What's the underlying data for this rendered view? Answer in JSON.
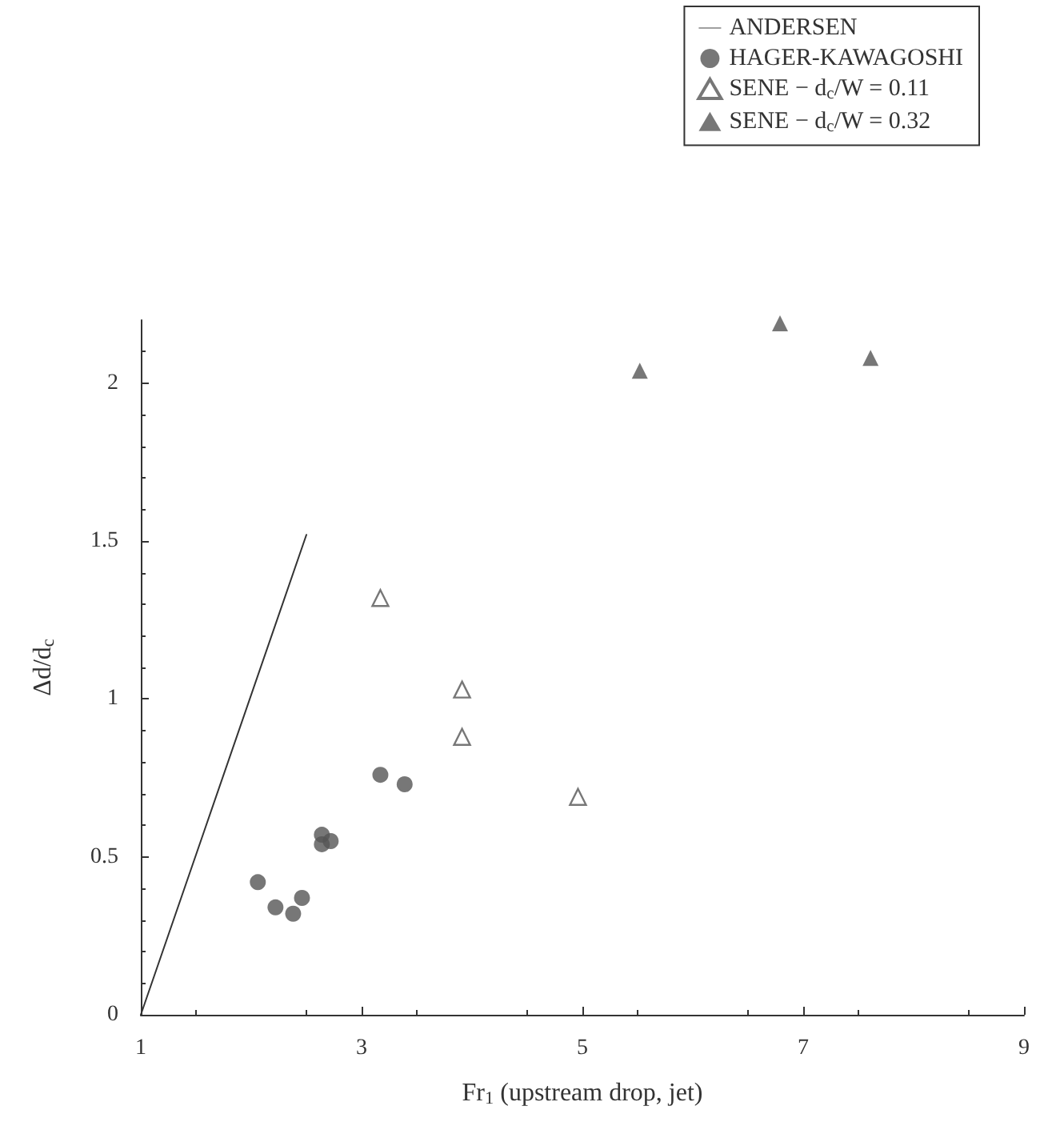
{
  "chart_data": {
    "type": "scatter",
    "xlabel": "Fr$_{1}$ (upstream drop, jet)",
    "ylabel": "Δd/d$_{c}$",
    "xlim": [
      1,
      9
    ],
    "xticks": [
      1,
      3,
      5,
      7,
      9
    ],
    "ylim": [
      0,
      2.2
    ],
    "yticks": [
      0,
      0.5,
      1,
      1.5,
      2
    ],
    "grid": false,
    "legend": "top right",
    "series": [
      {
        "name": "ANDERSEN",
        "type": "line",
        "marker": "none",
        "line_style": "solid",
        "color": "#333333",
        "x": [
          1,
          2.5
        ],
        "values": [
          0,
          1.52
        ]
      },
      {
        "name": "HAGER-KAWAGOSHI",
        "marker": "circle",
        "color": "#555555",
        "x": [
          2.06,
          2.22,
          2.38,
          2.46,
          2.64,
          2.64,
          2.72,
          3.17,
          3.39
        ],
        "values": [
          0.42,
          0.34,
          0.32,
          0.37,
          0.57,
          0.54,
          0.55,
          0.76,
          0.73
        ]
      },
      {
        "name": "SENE − d$_{c}$/W = 0.11",
        "marker": "triangle",
        "color": "#555555",
        "x": [
          3.17,
          3.91,
          3.91,
          4.96
        ],
        "values": [
          1.32,
          1.03,
          0.88,
          0.69
        ]
      },
      {
        "name": "SENE − d$_{c}$/W = 0.32",
        "marker": "triangle",
        "color": "#555555",
        "x": [
          5.52,
          6.79,
          7.61
        ],
        "values": [
          2.04,
          2.19,
          2.08
        ]
      }
    ]
  }
}
